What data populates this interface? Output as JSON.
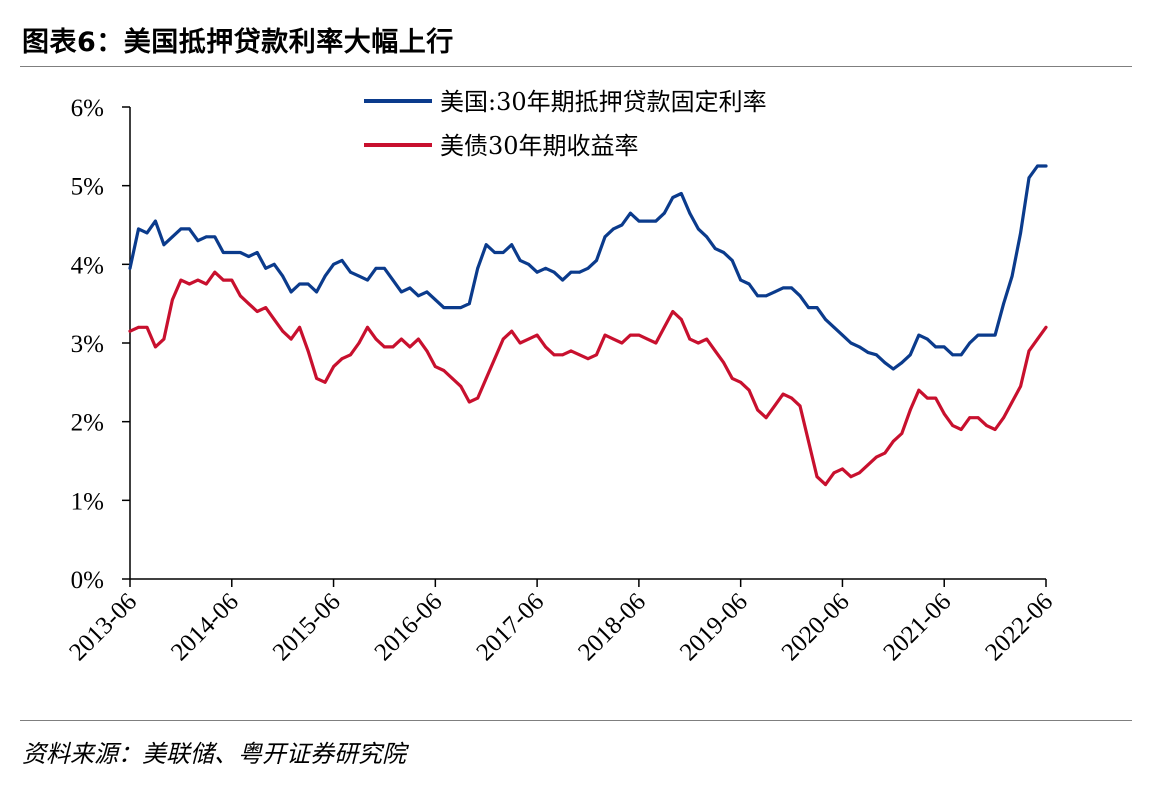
{
  "figure_title": "图表6：美国抵押贷款利率大幅上行",
  "source_note": "资料来源：美联储、粤开证券研究院",
  "colors": {
    "mortgage": "#0b3b8c",
    "treasury": "#c8102e",
    "axis": "#000000",
    "rule": "#7f7f7f"
  },
  "chart_data": {
    "type": "line",
    "title": "图表6：美国抵押贷款利率大幅上行",
    "xlabel": "",
    "ylabel": "",
    "ylim": [
      0,
      6
    ],
    "xlim": [
      "2013-06",
      "2022-06"
    ],
    "grid": false,
    "legend_position": "top-center",
    "y_ticks": [
      "0%",
      "1%",
      "2%",
      "3%",
      "4%",
      "5%",
      "6%"
    ],
    "x_ticks": [
      "2013-06",
      "2014-06",
      "2015-06",
      "2016-06",
      "2017-06",
      "2018-06",
      "2019-06",
      "2020-06",
      "2021-06",
      "2022-06"
    ],
    "series": [
      {
        "name": "美国:30年期抵押贷款固定利率",
        "color": "#0b3b8c",
        "points": [
          [
            "2013-06",
            3.95
          ],
          [
            "2013-07",
            4.45
          ],
          [
            "2013-08",
            4.4
          ],
          [
            "2013-09",
            4.55
          ],
          [
            "2013-10",
            4.25
          ],
          [
            "2013-11",
            4.35
          ],
          [
            "2013-12",
            4.45
          ],
          [
            "2014-01",
            4.45
          ],
          [
            "2014-02",
            4.3
          ],
          [
            "2014-03",
            4.35
          ],
          [
            "2014-04",
            4.35
          ],
          [
            "2014-05",
            4.15
          ],
          [
            "2014-06",
            4.15
          ],
          [
            "2014-07",
            4.15
          ],
          [
            "2014-08",
            4.1
          ],
          [
            "2014-09",
            4.15
          ],
          [
            "2014-10",
            3.95
          ],
          [
            "2014-11",
            4.0
          ],
          [
            "2014-12",
            3.85
          ],
          [
            "2015-01",
            3.65
          ],
          [
            "2015-02",
            3.75
          ],
          [
            "2015-03",
            3.75
          ],
          [
            "2015-04",
            3.65
          ],
          [
            "2015-05",
            3.85
          ],
          [
            "2015-06",
            4.0
          ],
          [
            "2015-07",
            4.05
          ],
          [
            "2015-08",
            3.9
          ],
          [
            "2015-09",
            3.85
          ],
          [
            "2015-10",
            3.8
          ],
          [
            "2015-11",
            3.95
          ],
          [
            "2015-12",
            3.95
          ],
          [
            "2016-01",
            3.8
          ],
          [
            "2016-02",
            3.65
          ],
          [
            "2016-03",
            3.7
          ],
          [
            "2016-04",
            3.6
          ],
          [
            "2016-05",
            3.65
          ],
          [
            "2016-06",
            3.55
          ],
          [
            "2016-07",
            3.45
          ],
          [
            "2016-08",
            3.45
          ],
          [
            "2016-09",
            3.45
          ],
          [
            "2016-10",
            3.5
          ],
          [
            "2016-11",
            3.95
          ],
          [
            "2016-12",
            4.25
          ],
          [
            "2017-01",
            4.15
          ],
          [
            "2017-02",
            4.15
          ],
          [
            "2017-03",
            4.25
          ],
          [
            "2017-04",
            4.05
          ],
          [
            "2017-05",
            4.0
          ],
          [
            "2017-06",
            3.9
          ],
          [
            "2017-07",
            3.95
          ],
          [
            "2017-08",
            3.9
          ],
          [
            "2017-09",
            3.8
          ],
          [
            "2017-10",
            3.9
          ],
          [
            "2017-11",
            3.9
          ],
          [
            "2017-12",
            3.95
          ],
          [
            "2018-01",
            4.05
          ],
          [
            "2018-02",
            4.35
          ],
          [
            "2018-03",
            4.45
          ],
          [
            "2018-04",
            4.5
          ],
          [
            "2018-05",
            4.65
          ],
          [
            "2018-06",
            4.55
          ],
          [
            "2018-07",
            4.55
          ],
          [
            "2018-08",
            4.55
          ],
          [
            "2018-09",
            4.65
          ],
          [
            "2018-10",
            4.85
          ],
          [
            "2018-11",
            4.9
          ],
          [
            "2018-12",
            4.65
          ],
          [
            "2019-01",
            4.45
          ],
          [
            "2019-02",
            4.35
          ],
          [
            "2019-03",
            4.2
          ],
          [
            "2019-04",
            4.15
          ],
          [
            "2019-05",
            4.05
          ],
          [
            "2019-06",
            3.8
          ],
          [
            "2019-07",
            3.75
          ],
          [
            "2019-08",
            3.6
          ],
          [
            "2019-09",
            3.6
          ],
          [
            "2019-10",
            3.65
          ],
          [
            "2019-11",
            3.7
          ],
          [
            "2019-12",
            3.7
          ],
          [
            "2020-01",
            3.6
          ],
          [
            "2020-02",
            3.45
          ],
          [
            "2020-03",
            3.45
          ],
          [
            "2020-04",
            3.3
          ],
          [
            "2020-05",
            3.2
          ],
          [
            "2020-06",
            3.1
          ],
          [
            "2020-07",
            3.0
          ],
          [
            "2020-08",
            2.95
          ],
          [
            "2020-09",
            2.88
          ],
          [
            "2020-10",
            2.85
          ],
          [
            "2020-11",
            2.75
          ],
          [
            "2020-12",
            2.67
          ],
          [
            "2021-01",
            2.75
          ],
          [
            "2021-02",
            2.85
          ],
          [
            "2021-03",
            3.1
          ],
          [
            "2021-04",
            3.05
          ],
          [
            "2021-05",
            2.95
          ],
          [
            "2021-06",
            2.95
          ],
          [
            "2021-07",
            2.85
          ],
          [
            "2021-08",
            2.85
          ],
          [
            "2021-09",
            3.0
          ],
          [
            "2021-10",
            3.1
          ],
          [
            "2021-11",
            3.1
          ],
          [
            "2021-12",
            3.1
          ],
          [
            "2022-01",
            3.5
          ],
          [
            "2022-02",
            3.85
          ],
          [
            "2022-03",
            4.4
          ],
          [
            "2022-04",
            5.1
          ],
          [
            "2022-05",
            5.25
          ],
          [
            "2022-06",
            5.25
          ]
        ]
      },
      {
        "name": "美债30年期收益率",
        "color": "#c8102e",
        "points": [
          [
            "2013-06",
            3.15
          ],
          [
            "2013-07",
            3.2
          ],
          [
            "2013-08",
            3.2
          ],
          [
            "2013-09",
            2.95
          ],
          [
            "2013-10",
            3.05
          ],
          [
            "2013-11",
            3.55
          ],
          [
            "2013-12",
            3.8
          ],
          [
            "2014-01",
            3.75
          ],
          [
            "2014-02",
            3.8
          ],
          [
            "2014-03",
            3.75
          ],
          [
            "2014-04",
            3.9
          ],
          [
            "2014-05",
            3.8
          ],
          [
            "2014-06",
            3.8
          ],
          [
            "2014-07",
            3.6
          ],
          [
            "2014-08",
            3.5
          ],
          [
            "2014-09",
            3.4
          ],
          [
            "2014-10",
            3.45
          ],
          [
            "2014-11",
            3.3
          ],
          [
            "2014-12",
            3.15
          ],
          [
            "2015-01",
            3.05
          ],
          [
            "2015-02",
            3.2
          ],
          [
            "2015-03",
            2.9
          ],
          [
            "2015-04",
            2.55
          ],
          [
            "2015-05",
            2.5
          ],
          [
            "2015-06",
            2.7
          ],
          [
            "2015-07",
            2.8
          ],
          [
            "2015-08",
            2.85
          ],
          [
            "2015-09",
            3.0
          ],
          [
            "2015-10",
            3.2
          ],
          [
            "2015-11",
            3.05
          ],
          [
            "2015-12",
            2.95
          ],
          [
            "2016-01",
            2.95
          ],
          [
            "2016-02",
            3.05
          ],
          [
            "2016-03",
            2.95
          ],
          [
            "2016-04",
            3.05
          ],
          [
            "2016-05",
            2.9
          ],
          [
            "2016-06",
            2.7
          ],
          [
            "2016-07",
            2.65
          ],
          [
            "2016-08",
            2.55
          ],
          [
            "2016-09",
            2.45
          ],
          [
            "2016-10",
            2.25
          ],
          [
            "2016-11",
            2.3
          ],
          [
            "2016-12",
            2.55
          ],
          [
            "2017-01",
            2.8
          ],
          [
            "2017-02",
            3.05
          ],
          [
            "2017-03",
            3.15
          ],
          [
            "2017-04",
            3.0
          ],
          [
            "2017-05",
            3.05
          ],
          [
            "2017-06",
            3.1
          ],
          [
            "2017-07",
            2.95
          ],
          [
            "2017-08",
            2.85
          ],
          [
            "2017-09",
            2.85
          ],
          [
            "2017-10",
            2.9
          ],
          [
            "2017-11",
            2.85
          ],
          [
            "2017-12",
            2.8
          ],
          [
            "2018-01",
            2.85
          ],
          [
            "2018-02",
            3.1
          ],
          [
            "2018-03",
            3.05
          ],
          [
            "2018-04",
            3.0
          ],
          [
            "2018-05",
            3.1
          ],
          [
            "2018-06",
            3.1
          ],
          [
            "2018-07",
            3.05
          ],
          [
            "2018-08",
            3.0
          ],
          [
            "2018-09",
            3.2
          ],
          [
            "2018-10",
            3.4
          ],
          [
            "2018-11",
            3.3
          ],
          [
            "2018-12",
            3.05
          ],
          [
            "2019-01",
            3.0
          ],
          [
            "2019-02",
            3.05
          ],
          [
            "2019-03",
            2.9
          ],
          [
            "2019-04",
            2.75
          ],
          [
            "2019-05",
            2.55
          ],
          [
            "2019-06",
            2.5
          ],
          [
            "2019-07",
            2.4
          ],
          [
            "2019-08",
            2.15
          ],
          [
            "2019-09",
            2.05
          ],
          [
            "2019-10",
            2.2
          ],
          [
            "2019-11",
            2.35
          ],
          [
            "2019-12",
            2.3
          ],
          [
            "2020-01",
            2.2
          ],
          [
            "2020-02",
            1.75
          ],
          [
            "2020-03",
            1.3
          ],
          [
            "2020-04",
            1.2
          ],
          [
            "2020-05",
            1.35
          ],
          [
            "2020-06",
            1.4
          ],
          [
            "2020-07",
            1.3
          ],
          [
            "2020-08",
            1.35
          ],
          [
            "2020-09",
            1.45
          ],
          [
            "2020-10",
            1.55
          ],
          [
            "2020-11",
            1.6
          ],
          [
            "2020-12",
            1.75
          ],
          [
            "2021-01",
            1.85
          ],
          [
            "2021-02",
            2.15
          ],
          [
            "2021-03",
            2.4
          ],
          [
            "2021-04",
            2.3
          ],
          [
            "2021-05",
            2.3
          ],
          [
            "2021-06",
            2.1
          ],
          [
            "2021-07",
            1.95
          ],
          [
            "2021-08",
            1.9
          ],
          [
            "2021-09",
            2.05
          ],
          [
            "2021-10",
            2.05
          ],
          [
            "2021-11",
            1.95
          ],
          [
            "2021-12",
            1.9
          ],
          [
            "2022-01",
            2.05
          ],
          [
            "2022-02",
            2.25
          ],
          [
            "2022-03",
            2.45
          ],
          [
            "2022-04",
            2.9
          ],
          [
            "2022-05",
            3.05
          ],
          [
            "2022-06",
            3.2
          ]
        ]
      }
    ]
  }
}
